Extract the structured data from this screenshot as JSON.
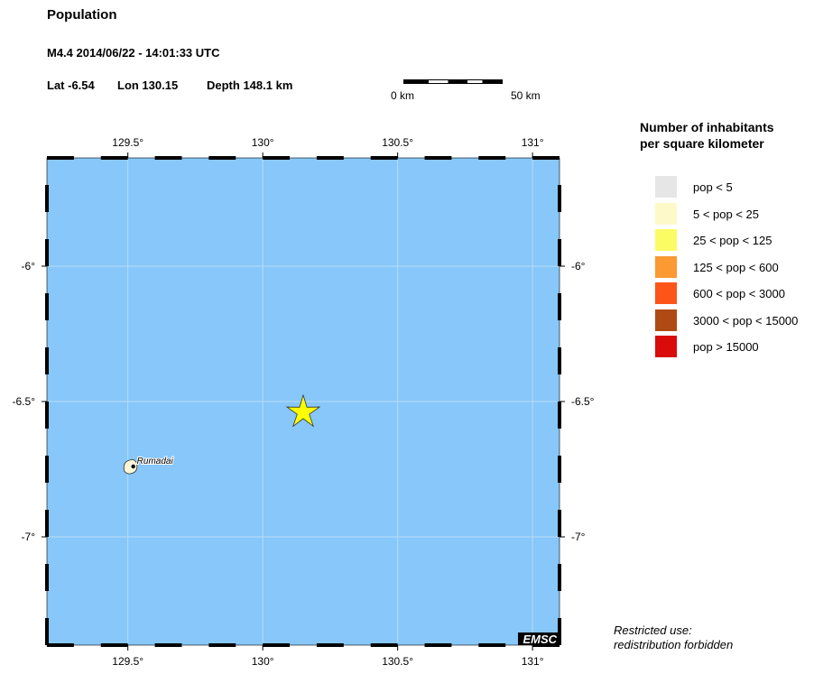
{
  "header": {
    "title": "Population",
    "event": "M4.4  2014/06/22 - 14:01:33 UTC",
    "lat": "Lat -6.54",
    "lon": "Lon 130.15",
    "depth": "Depth 148.1 km"
  },
  "scale_bar": {
    "left_label": "0 km",
    "right_label": "50 km"
  },
  "map": {
    "ocean_color": "#87c7f9",
    "lon_range": [
      129.2,
      131.1
    ],
    "lat_range": [
      -7.4,
      -5.6
    ],
    "lon_ticks": [
      {
        "v": 129.5,
        "label": "129.5°"
      },
      {
        "v": 130,
        "label": "130°"
      },
      {
        "v": 130.5,
        "label": "130.5°"
      },
      {
        "v": 131,
        "label": "131°"
      }
    ],
    "lat_ticks": [
      {
        "v": -6,
        "label": "-6°"
      },
      {
        "v": -6.5,
        "label": "-6.5°"
      },
      {
        "v": -7,
        "label": "-7°"
      }
    ],
    "epicenter": {
      "lon": 130.15,
      "lat": -6.54,
      "color": "#ffff00",
      "icon": "star-icon"
    },
    "city": {
      "name": "Rumadai",
      "lon": 129.52,
      "lat": -6.74
    },
    "watermark": "EMSC"
  },
  "legend": {
    "title_line1": "Number of inhabitants",
    "title_line2": "per square kilometer",
    "items": [
      {
        "label": "pop < 5",
        "color": "#e6e6e6"
      },
      {
        "label": "5 < pop < 25",
        "color": "#fdfac8"
      },
      {
        "label": "25 < pop < 125",
        "color": "#fbfb64"
      },
      {
        "label": "125 < pop < 600",
        "color": "#fb9933"
      },
      {
        "label": "600 < pop < 3000",
        "color": "#fd5519"
      },
      {
        "label": "3000 < pop < 15000",
        "color": "#b04a14"
      },
      {
        "label": "pop > 15000",
        "color": "#d90b0b"
      }
    ]
  },
  "footer": {
    "line1": "Restricted use:",
    "line2": "redistribution forbidden"
  }
}
